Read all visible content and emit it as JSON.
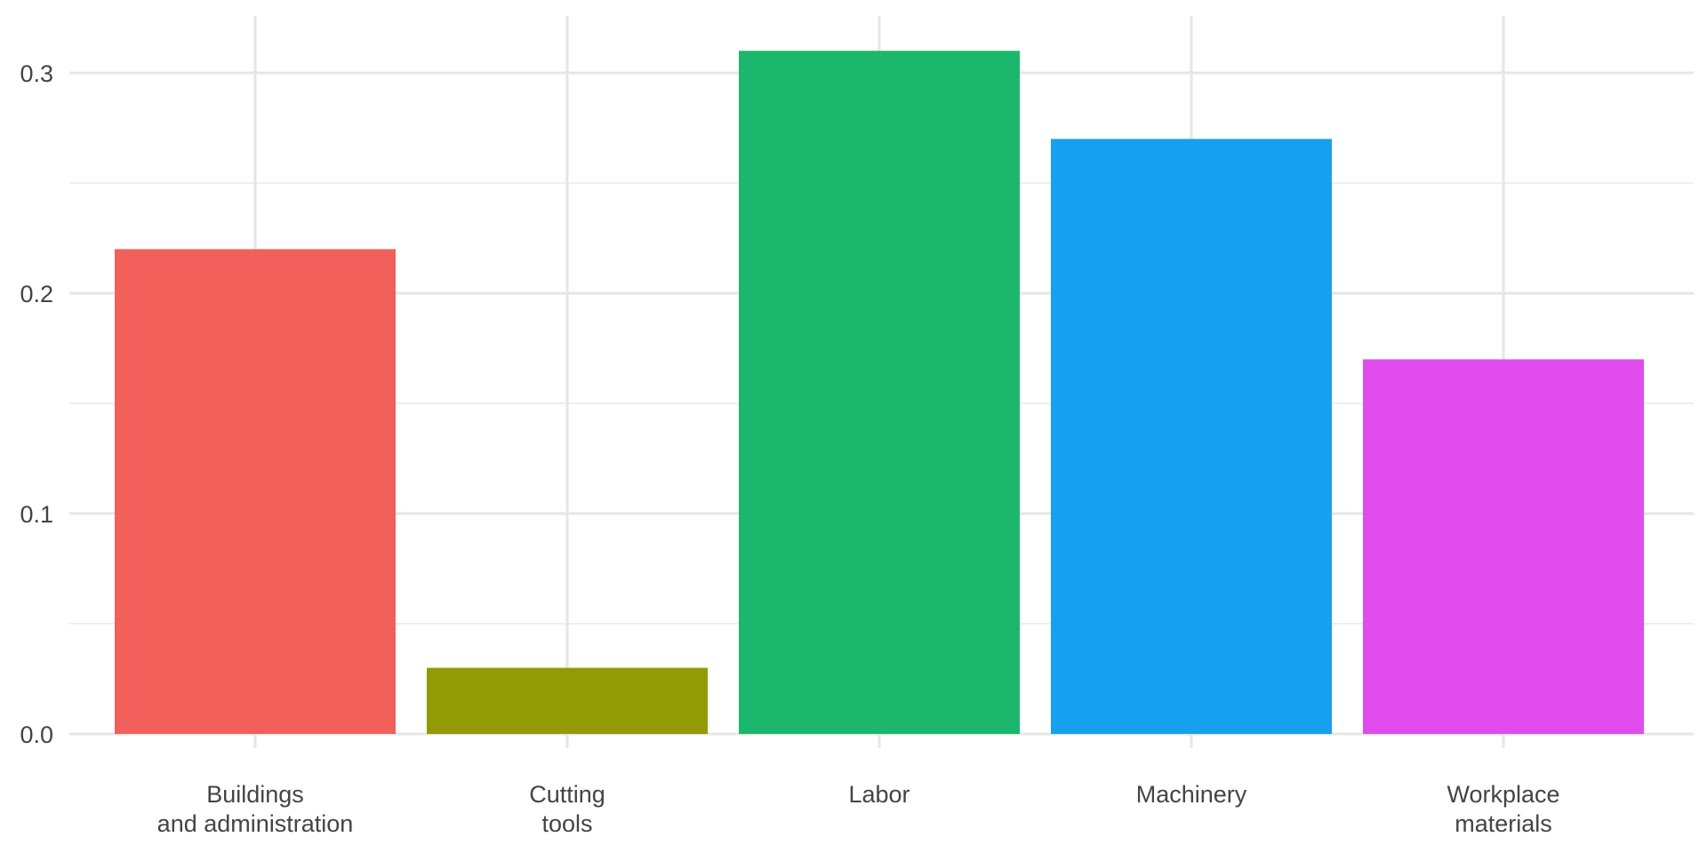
{
  "chart_data": {
    "type": "bar",
    "categories": [
      [
        "Buildings",
        "and administration"
      ],
      [
        "Cutting",
        "tools"
      ],
      [
        "Labor"
      ],
      [
        "Machinery"
      ],
      [
        "Workplace",
        "materials"
      ]
    ],
    "values": [
      0.22,
      0.03,
      0.31,
      0.27,
      0.17
    ],
    "colors": [
      "#F2605C",
      "#929B05",
      "#1BB76C",
      "#17A0F0",
      "#E04CEE"
    ],
    "yticks": [
      0.0,
      0.1,
      0.2,
      0.3
    ],
    "ytick_labels": [
      "0.0",
      "0.1",
      "0.2",
      "0.3"
    ],
    "ylim": [
      0,
      0.32
    ],
    "grid": true,
    "legend": "none",
    "title": "",
    "xlabel": "",
    "ylabel": ""
  }
}
